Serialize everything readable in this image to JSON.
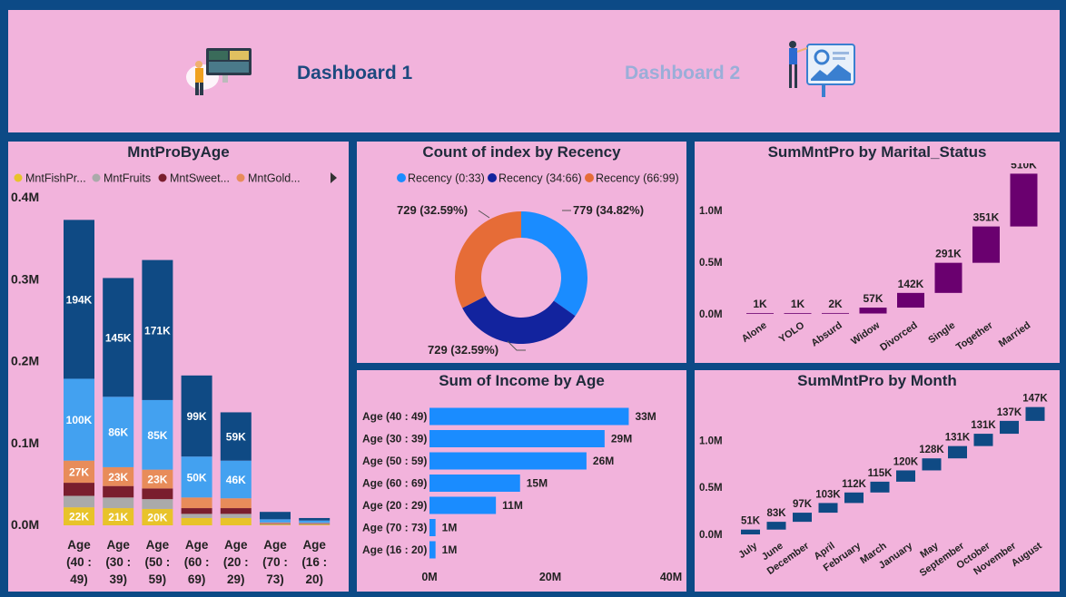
{
  "header": {
    "link1": "Dashboard 1",
    "link2": "Dashboard 2",
    "colors": {
      "link1": "#1d4a7f",
      "link2": "#9aaed8",
      "bg": "#f2b3dc",
      "frame": "#0c4a86"
    }
  },
  "panels": {
    "age": "MntProByAge",
    "recency": "Count of index by Recency",
    "marital": "SumMntPro by Marital_Status",
    "income": "Sum of Income by Age",
    "month": "SumMntPro by Month"
  },
  "chart_data": [
    {
      "id": "mnt-by-age",
      "type": "bar",
      "stacked": true,
      "title": "MntProByAge",
      "legend": [
        "MntFishPr...",
        "MntFruits",
        "MntSweet...",
        "MntGold..."
      ],
      "legend_colors": [
        "#e8c32a",
        "#aaaaaa",
        "#7a1e2e",
        "#e88c5a"
      ],
      "categories": [
        [
          "Age",
          "(40 :",
          "49)"
        ],
        [
          "Age",
          "(30 :",
          "39)"
        ],
        [
          "Age",
          "(50 :",
          "59)"
        ],
        [
          "Age",
          "(60 :",
          "69)"
        ],
        [
          "Age",
          "(20 :",
          "29)"
        ],
        [
          "Age",
          "(70 :",
          "73)"
        ],
        [
          "Age",
          "(16 :",
          "20)"
        ]
      ],
      "series": [
        {
          "name": "MntFishPr...",
          "color": "#e8c32a",
          "values": [
            22000,
            21000,
            20000,
            9000,
            9000,
            1000,
            1000
          ],
          "labels": [
            "22K",
            "21K",
            "20K",
            "",
            "",
            "",
            ""
          ]
        },
        {
          "name": "MntFruits",
          "color": "#aaaaaa",
          "values": [
            14000,
            13000,
            12000,
            5000,
            5000,
            800,
            600
          ],
          "labels": [
            "",
            "",
            "",
            "",
            "",
            "",
            ""
          ]
        },
        {
          "name": "MntSweet...",
          "color": "#7a1e2e",
          "values": [
            16000,
            14000,
            13000,
            7000,
            7000,
            600,
            500
          ],
          "labels": [
            "",
            "",
            "",
            "",
            "",
            "",
            ""
          ]
        },
        {
          "name": "MntGold...",
          "color": "#e88c5a",
          "values": [
            27000,
            23000,
            23000,
            13000,
            12000,
            1000,
            800
          ],
          "labels": [
            "27K",
            "23K",
            "23K",
            "",
            "",
            "",
            ""
          ]
        },
        {
          "name": "",
          "color": "#43a1f0",
          "values": [
            100000,
            86000,
            85000,
            50000,
            46000,
            4000,
            3000
          ],
          "labels": [
            "100K",
            "86K",
            "85K",
            "50K",
            "46K",
            "",
            ""
          ]
        },
        {
          "name": "",
          "color": "#0f4a84",
          "values": [
            194000,
            145000,
            171000,
            99000,
            59000,
            9000,
            3000
          ],
          "labels": [
            "194K",
            "145K",
            "171K",
            "99K",
            "59K",
            "",
            ""
          ]
        }
      ],
      "yticks": [
        "0.0M",
        "0.1M",
        "0.2M",
        "0.3M",
        "0.4M"
      ],
      "ylim": [
        0,
        400000
      ]
    },
    {
      "id": "recency",
      "type": "pie",
      "title": "Count of index by Recency",
      "legend": [
        "Recency (0:33)",
        "Recency (34:66)",
        "Recency (66:99)"
      ],
      "colors": [
        "#1a8cff",
        "#12239e",
        "#e66c37"
      ],
      "values": [
        779,
        729,
        729
      ],
      "labels": [
        "779 (34.82%)",
        "729 (32.59%)",
        "729 (32.59%)"
      ]
    },
    {
      "id": "marital",
      "type": "bar",
      "subtype": "waterfall",
      "title": "SumMntPro by Marital_Status",
      "categories": [
        "Alone",
        "YOLO",
        "Absurd",
        "Widow",
        "Divorced",
        "Single",
        "Together",
        "Married"
      ],
      "values": [
        1000,
        1000,
        2000,
        57000,
        142000,
        291000,
        351000,
        510000
      ],
      "labels": [
        "1K",
        "1K",
        "2K",
        "57K",
        "142K",
        "291K",
        "351K",
        "510K"
      ],
      "color": "#6a006f",
      "yticks": [
        "0.0M",
        "0.5M",
        "1.0M"
      ],
      "ylim": [
        0,
        1350000
      ]
    },
    {
      "id": "income",
      "type": "bar",
      "orientation": "horizontal",
      "title": "Sum of Income by Age",
      "categories": [
        "Age (40 : 49)",
        "Age (30 : 39)",
        "Age (50 : 59)",
        "Age (60 : 69)",
        "Age (20 : 29)",
        "Age (70 : 73)",
        "Age (16 : 20)"
      ],
      "values": [
        33000000,
        29000000,
        26000000,
        15000000,
        11000000,
        1000000,
        1000000
      ],
      "labels": [
        "33M",
        "29M",
        "26M",
        "15M",
        "11M",
        "1M",
        "1M"
      ],
      "color": "#1a8cff",
      "xticks": [
        "0M",
        "20M",
        "40M"
      ],
      "xlim": [
        0,
        40000000
      ]
    },
    {
      "id": "month",
      "type": "bar",
      "subtype": "waterfall",
      "title": "SumMntPro by Month",
      "categories": [
        "July",
        "June",
        "December",
        "April",
        "February",
        "March",
        "January",
        "May",
        "September",
        "October",
        "November",
        "August"
      ],
      "values": [
        51000,
        83000,
        97000,
        103000,
        112000,
        115000,
        120000,
        128000,
        131000,
        131000,
        137000,
        147000
      ],
      "labels": [
        "51K",
        "83K",
        "97K",
        "103K",
        "112K",
        "115K",
        "120K",
        "128K",
        "131K",
        "131K",
        "137K",
        "147K"
      ],
      "color": "#0f4a84",
      "yticks": [
        "0.0M",
        "0.5M",
        "1.0M"
      ],
      "ylim": [
        0,
        1400000
      ]
    }
  ]
}
